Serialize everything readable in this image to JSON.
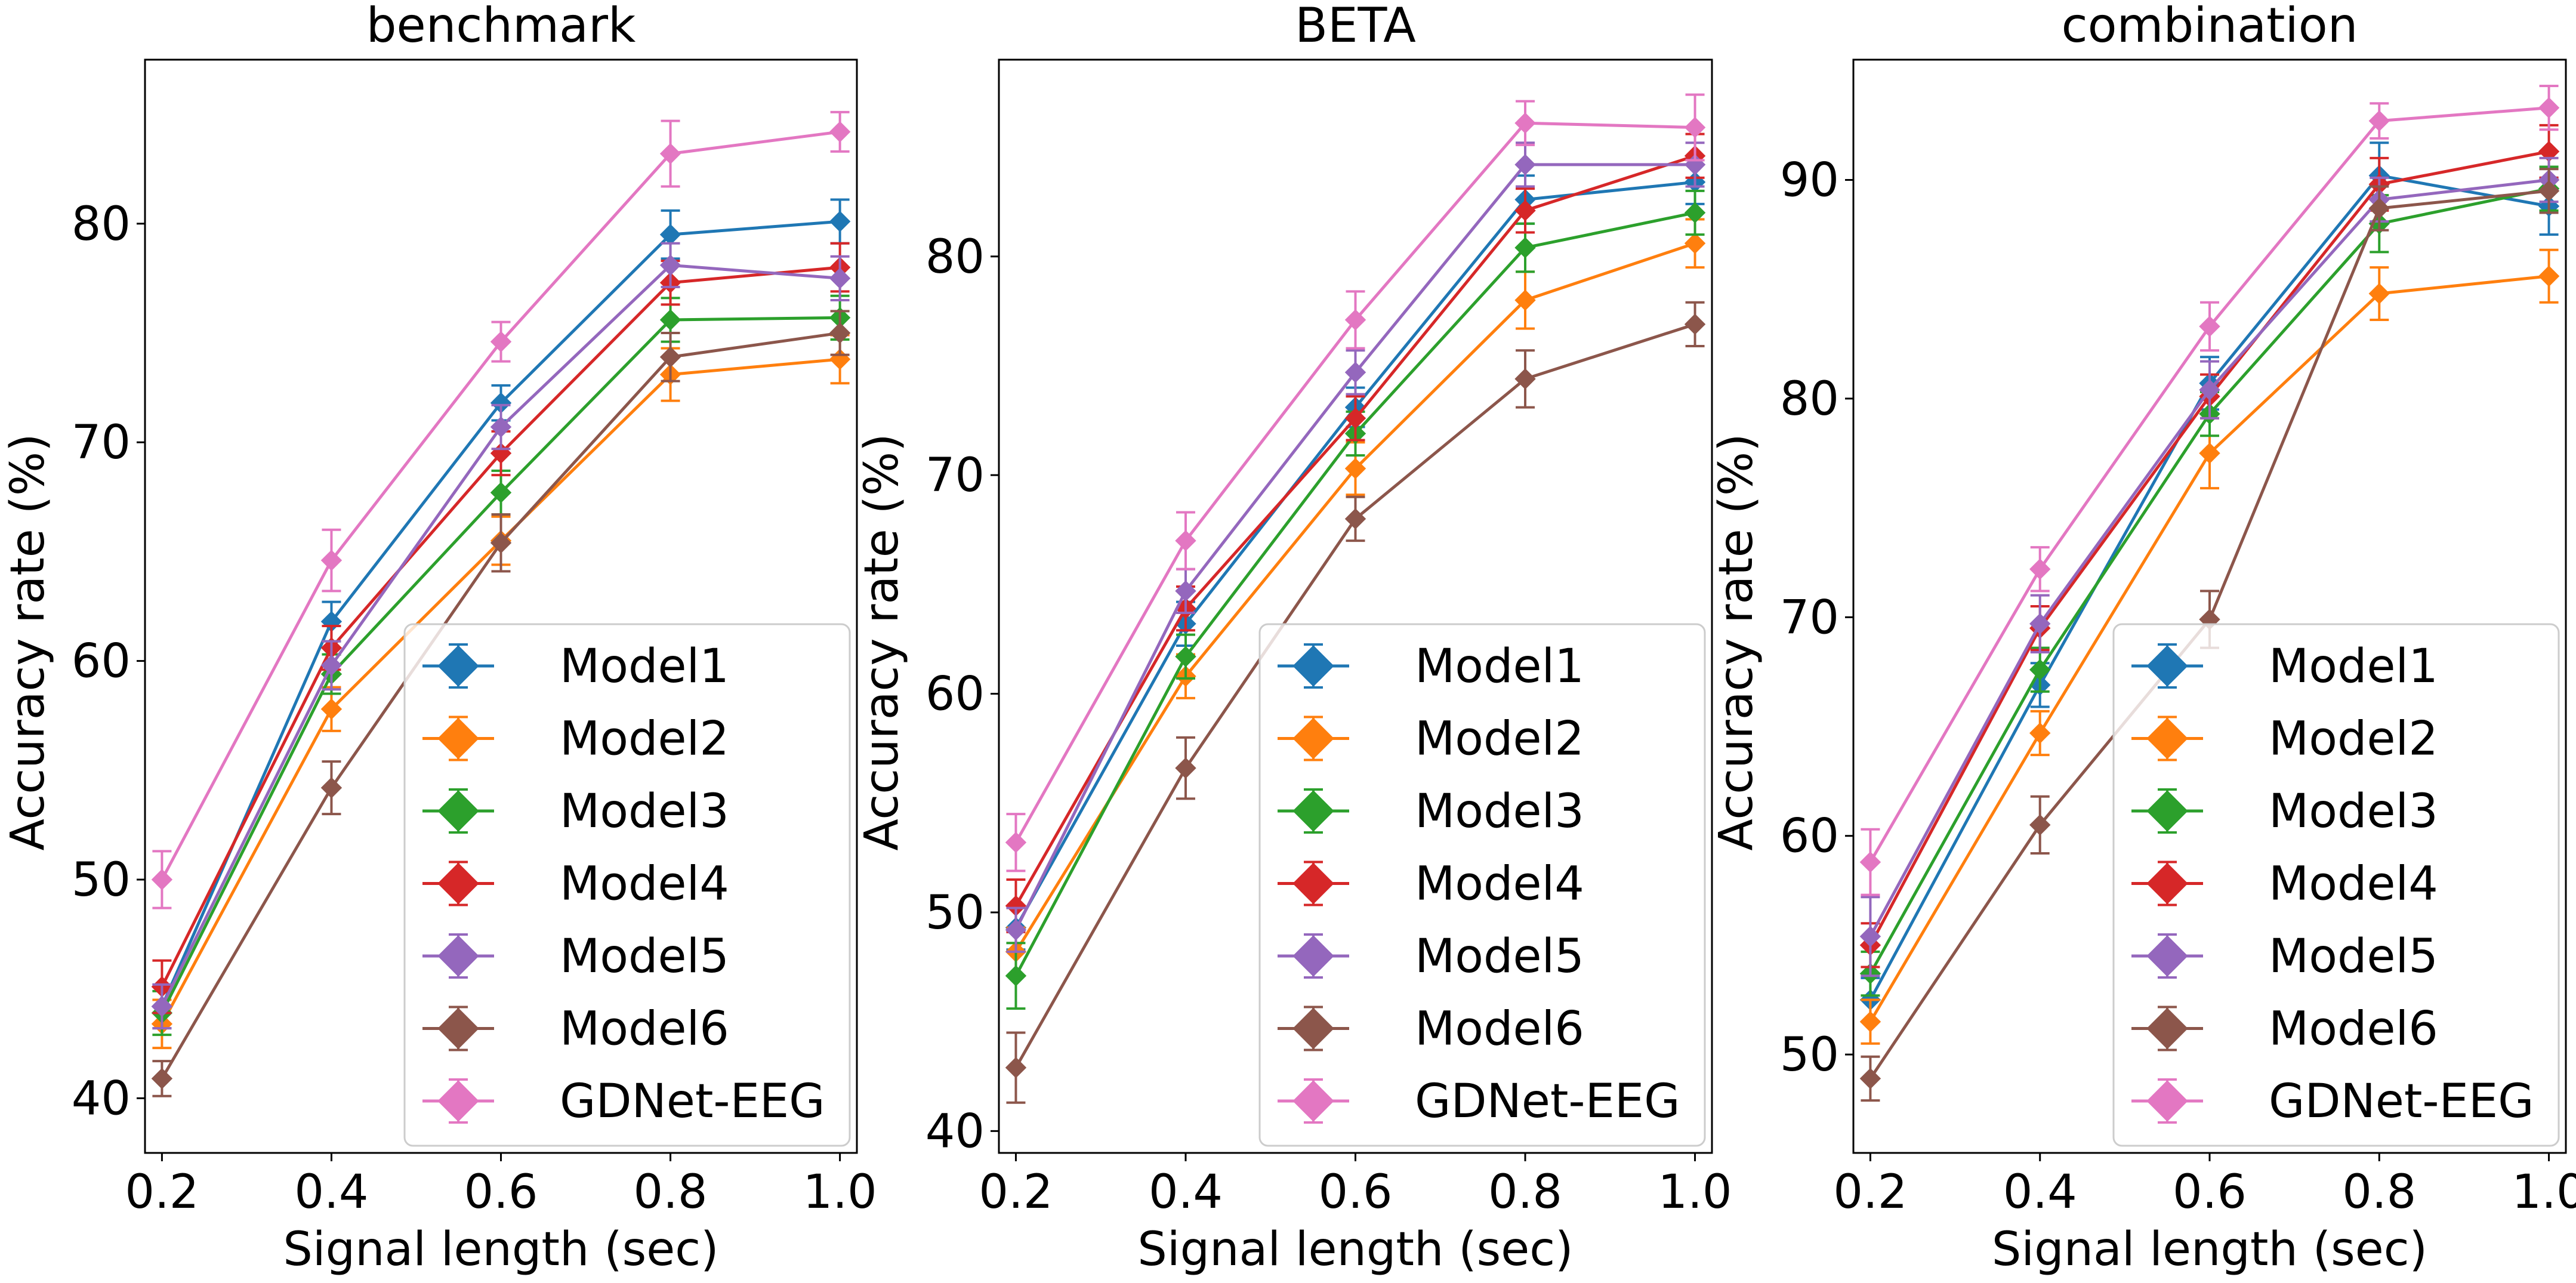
{
  "legend_labels": [
    "Model1",
    "Model2",
    "Model3",
    "Model4",
    "Model5",
    "Model6",
    "GDNet-EEG"
  ],
  "colors": {
    "Model1": "#1f77b4",
    "Model2": "#ff7f0e",
    "Model3": "#2ca02c",
    "Model4": "#d62728",
    "Model5": "#9467bd",
    "Model6": "#8c564b",
    "GDNet-EEG": "#e377c2"
  },
  "chart_data": [
    {
      "type": "line",
      "title": "benchmark",
      "xlabel": "Signal length (sec)",
      "ylabel": "Accuracy rate (%)",
      "x": [
        0.2,
        0.4,
        0.6,
        0.8,
        1.0
      ],
      "x_ticks": [
        "0.2",
        "0.4",
        "0.6",
        "0.8",
        "1.0"
      ],
      "xlim": [
        0.18,
        1.02
      ],
      "ylim": [
        37.5,
        87.5
      ],
      "y_ticks": [
        40,
        50,
        60,
        70,
        80
      ],
      "legend_position": "lower-right",
      "series": [
        {
          "name": "Model1",
          "values": [
            44.2,
            61.8,
            71.8,
            79.5,
            80.1
          ],
          "err": [
            1.0,
            0.9,
            0.8,
            1.1,
            1.0
          ]
        },
        {
          "name": "Model2",
          "values": [
            43.4,
            57.8,
            65.5,
            73.1,
            73.8
          ],
          "err": [
            1.1,
            1.0,
            1.1,
            1.2,
            1.1
          ]
        },
        {
          "name": "Model3",
          "values": [
            43.9,
            59.4,
            67.7,
            75.6,
            75.7
          ],
          "err": [
            1.0,
            0.9,
            1.0,
            1.0,
            1.0
          ]
        },
        {
          "name": "Model4",
          "values": [
            45.1,
            60.6,
            69.5,
            77.3,
            78.0
          ],
          "err": [
            1.2,
            1.0,
            1.0,
            1.0,
            1.1
          ]
        },
        {
          "name": "Model5",
          "values": [
            44.2,
            59.8,
            70.7,
            78.1,
            77.5
          ],
          "err": [
            1.0,
            1.1,
            1.0,
            1.0,
            1.0
          ]
        },
        {
          "name": "Model6",
          "values": [
            40.9,
            54.2,
            65.4,
            73.9,
            75.0
          ],
          "err": [
            0.8,
            1.2,
            1.3,
            1.1,
            1.0
          ]
        },
        {
          "name": "GDNet-EEG",
          "values": [
            50.0,
            64.6,
            74.6,
            83.2,
            84.2
          ],
          "err": [
            1.3,
            1.4,
            0.9,
            1.5,
            0.9
          ]
        }
      ]
    },
    {
      "type": "line",
      "title": "BETA",
      "xlabel": "Signal length (sec)",
      "ylabel": "Accuracy rate (%)",
      "x": [
        0.2,
        0.4,
        0.6,
        0.8,
        1.0
      ],
      "x_ticks": [
        "0.2",
        "0.4",
        "0.6",
        "0.8",
        "1.0"
      ],
      "xlim": [
        0.18,
        1.02
      ],
      "ylim": [
        39.0,
        89.0
      ],
      "y_ticks": [
        40,
        50,
        60,
        70,
        80
      ],
      "legend_position": "lower-right",
      "series": [
        {
          "name": "Model1",
          "values": [
            49.3,
            63.2,
            73.1,
            82.6,
            83.4
          ],
          "err": [
            1.0,
            1.0,
            0.9,
            1.1,
            1.0
          ]
        },
        {
          "name": "Model2",
          "values": [
            48.2,
            60.8,
            70.3,
            78.0,
            80.6
          ],
          "err": [
            1.1,
            1.0,
            1.2,
            1.3,
            1.1
          ]
        },
        {
          "name": "Model3",
          "values": [
            47.1,
            61.7,
            71.9,
            80.4,
            82.0
          ],
          "err": [
            1.5,
            1.0,
            1.0,
            1.1,
            1.0
          ]
        },
        {
          "name": "Model4",
          "values": [
            50.3,
            63.9,
            72.6,
            82.1,
            84.6
          ],
          "err": [
            1.2,
            1.0,
            1.0,
            1.0,
            1.0
          ]
        },
        {
          "name": "Model5",
          "values": [
            49.2,
            64.7,
            74.7,
            84.2,
            84.2
          ],
          "err": [
            1.0,
            1.0,
            1.0,
            1.0,
            1.0
          ]
        },
        {
          "name": "Model6",
          "values": [
            42.9,
            56.6,
            68.0,
            74.4,
            76.9
          ],
          "err": [
            1.6,
            1.4,
            1.0,
            1.3,
            1.0
          ]
        },
        {
          "name": "GDNet-EEG",
          "values": [
            53.2,
            67.0,
            77.1,
            86.1,
            85.9
          ],
          "err": [
            1.3,
            1.3,
            1.3,
            1.0,
            1.5
          ]
        }
      ]
    },
    {
      "type": "line",
      "title": "combination",
      "xlabel": "Signal length (sec)",
      "ylabel": "Accuracy rate (%)",
      "x": [
        0.2,
        0.4,
        0.6,
        0.8,
        1.0
      ],
      "x_ticks": [
        "0.2",
        "0.4",
        "0.6",
        "0.8",
        "1.0"
      ],
      "xlim": [
        0.18,
        1.02
      ],
      "ylim": [
        45.5,
        95.5
      ],
      "y_ticks": [
        50,
        60,
        70,
        80,
        90
      ],
      "legend_position": "lower-right",
      "series": [
        {
          "name": "Model1",
          "values": [
            52.5,
            66.9,
            80.7,
            90.2,
            88.8
          ],
          "err": [
            1.0,
            1.0,
            1.2,
            1.5,
            1.3
          ]
        },
        {
          "name": "Model2",
          "values": [
            51.5,
            64.7,
            77.5,
            84.8,
            85.6
          ],
          "err": [
            1.0,
            1.0,
            1.6,
            1.2,
            1.2
          ]
        },
        {
          "name": "Model3",
          "values": [
            53.7,
            67.6,
            79.3,
            88.0,
            89.6
          ],
          "err": [
            1.0,
            1.0,
            1.0,
            1.3,
            1.0
          ]
        },
        {
          "name": "Model4",
          "values": [
            55.0,
            69.5,
            80.1,
            89.8,
            91.3
          ],
          "err": [
            1.0,
            1.0,
            1.0,
            1.2,
            1.2
          ]
        },
        {
          "name": "Model5",
          "values": [
            55.4,
            69.7,
            80.4,
            89.1,
            90.0
          ],
          "err": [
            1.8,
            1.3,
            1.3,
            1.0,
            1.0
          ]
        },
        {
          "name": "Model6",
          "values": [
            48.9,
            60.5,
            69.9,
            88.7,
            89.5
          ],
          "err": [
            1.0,
            1.3,
            1.3,
            1.0,
            1.0
          ]
        },
        {
          "name": "GDNet-EEG",
          "values": [
            58.8,
            72.2,
            83.3,
            92.7,
            93.3
          ],
          "err": [
            1.5,
            1.0,
            1.1,
            0.8,
            1.0
          ]
        }
      ]
    }
  ]
}
